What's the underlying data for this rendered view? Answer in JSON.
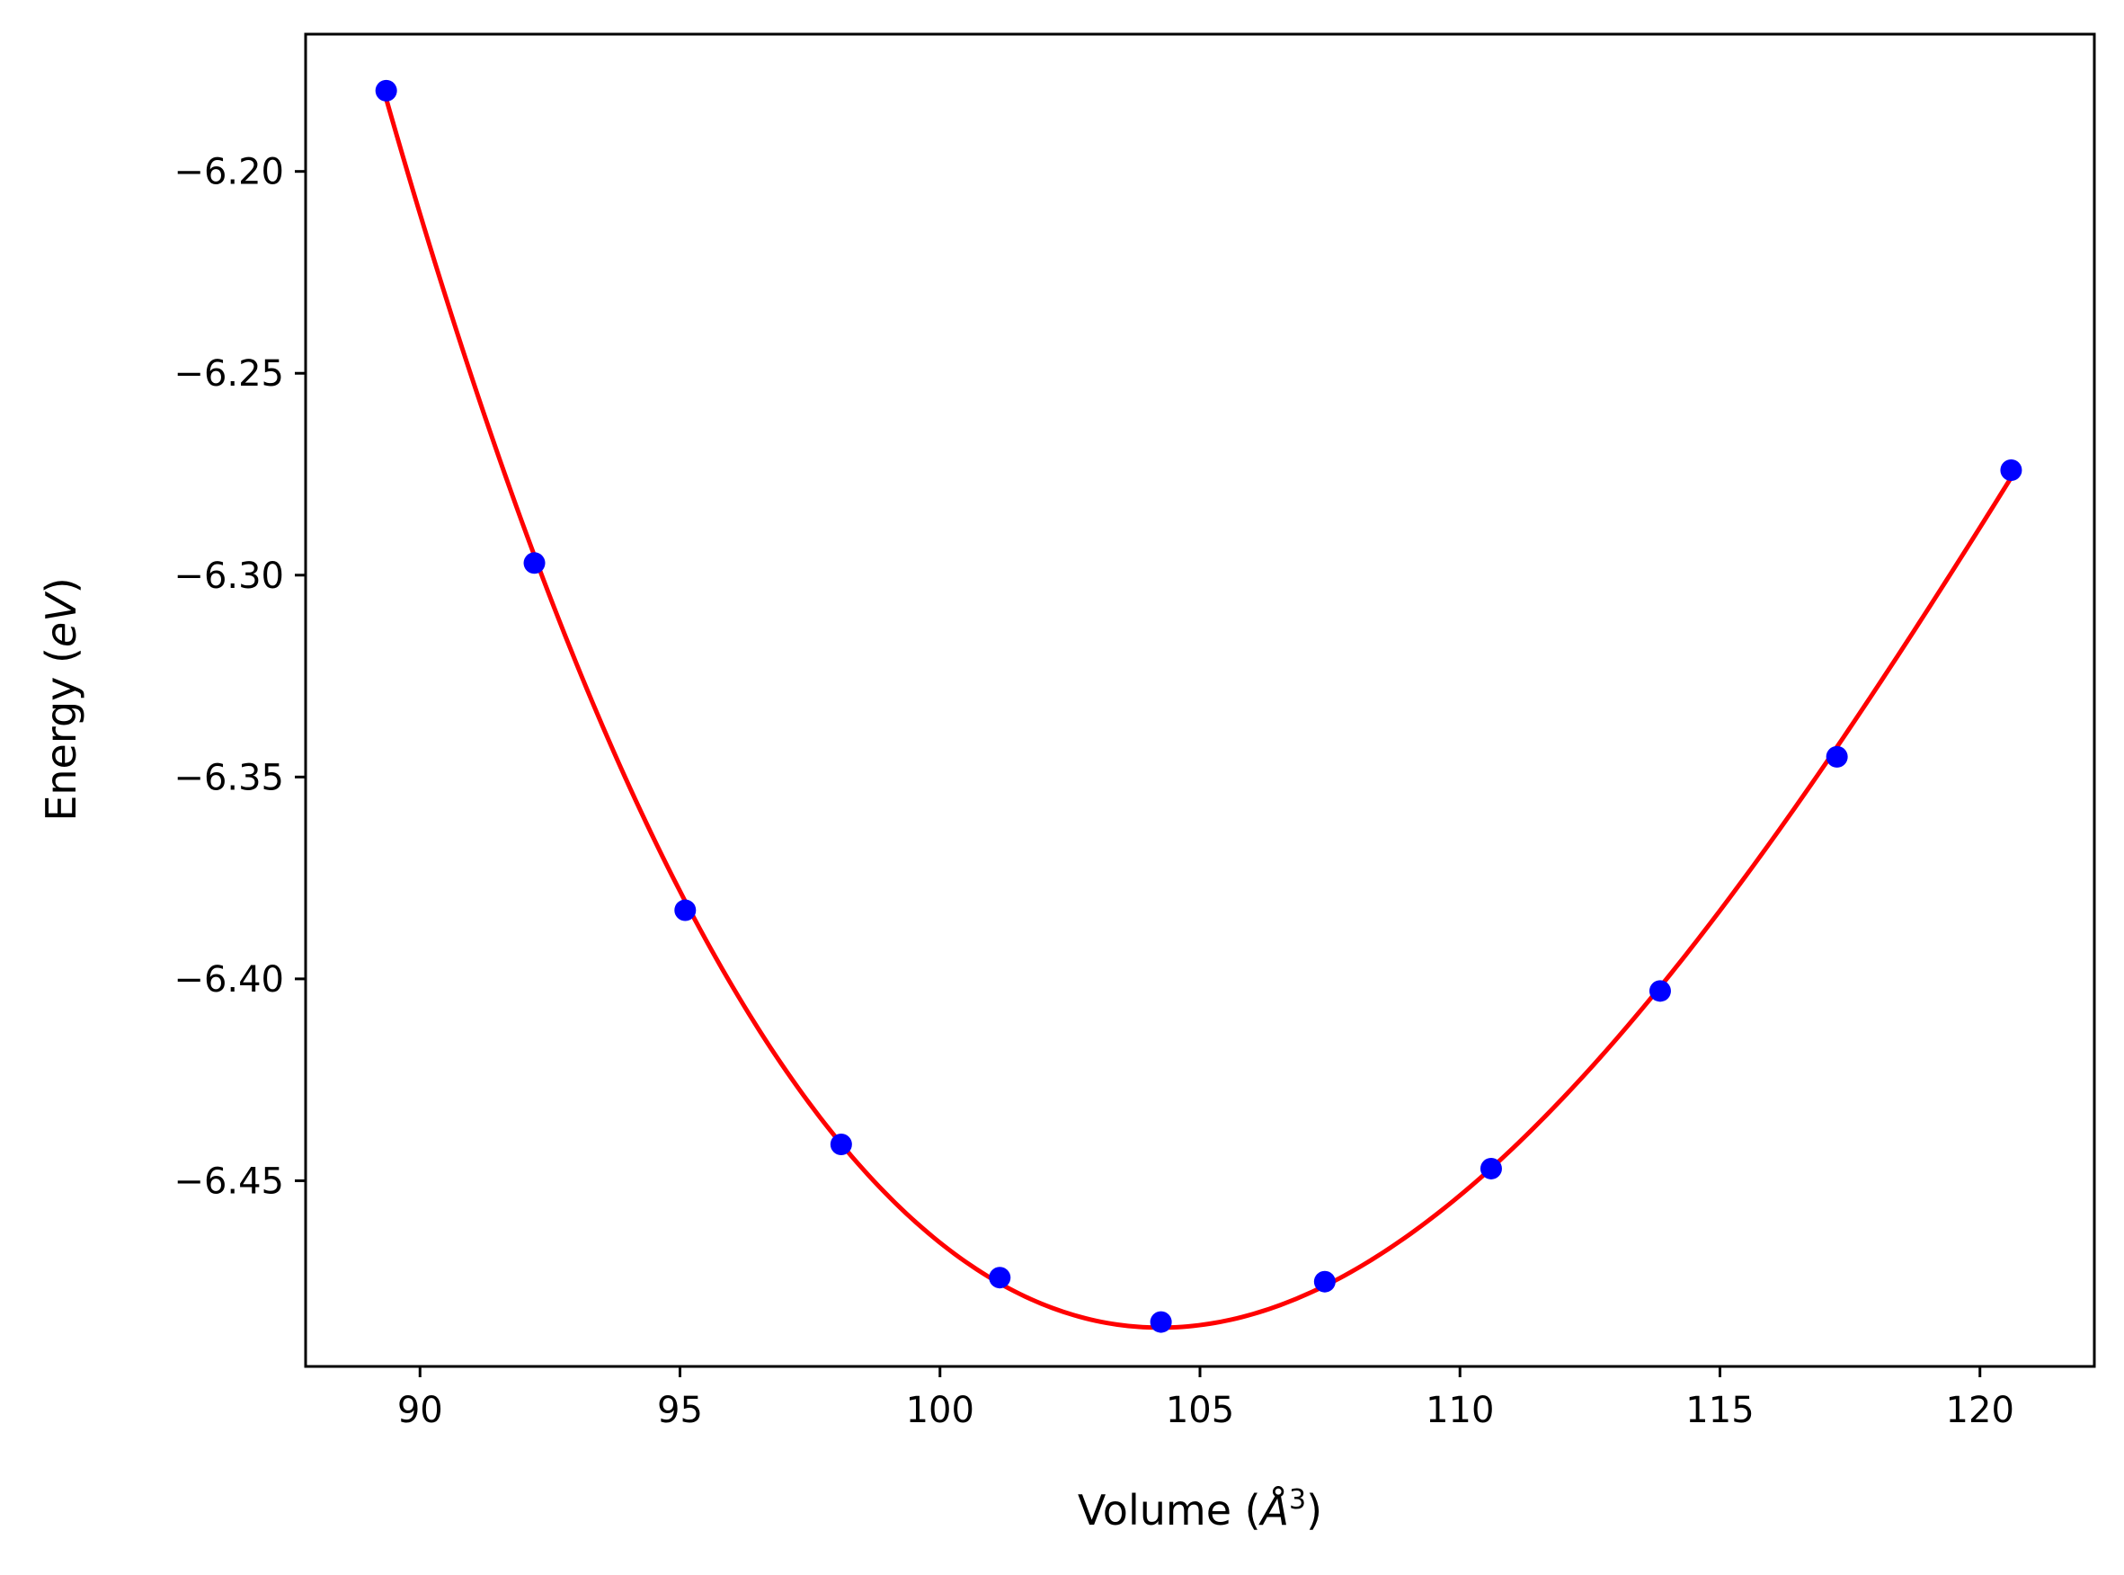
{
  "chart_data": {
    "type": "scatter",
    "title": "",
    "xlabel_text": "Volume (",
    "xlabel_unit": "Å",
    "xlabel_sup": "3",
    "xlabel_close": ")",
    "ylabel_text": "Energy (",
    "ylabel_unit": "eV",
    "ylabel_close": ")",
    "xlim": [
      87.8,
      122.2
    ],
    "ylim": [
      -6.496,
      -6.166
    ],
    "xticks": [
      90,
      95,
      100,
      105,
      110,
      115,
      120
    ],
    "xtick_labels": [
      "90",
      "95",
      "100",
      "105",
      "110",
      "115",
      "120"
    ],
    "yticks": [
      -6.2,
      -6.25,
      -6.3,
      -6.35,
      -6.4,
      -6.45
    ],
    "ytick_labels": [
      "−6.20",
      "−6.25",
      "−6.30",
      "−6.35",
      "−6.40",
      "−6.45"
    ],
    "grid": false,
    "series": [
      {
        "kind": "points",
        "color": "#0000ff",
        "x": [
          89.35,
          92.2,
          95.1,
          98.1,
          101.15,
          104.25,
          107.4,
          110.6,
          113.85,
          117.25,
          120.6
        ],
        "y": [
          -6.18,
          -6.297,
          -6.383,
          -6.441,
          -6.474,
          -6.485,
          -6.475,
          -6.447,
          -6.403,
          -6.345,
          -6.274
        ]
      },
      {
        "kind": "fit-curve",
        "color": "#ff0000"
      }
    ]
  }
}
